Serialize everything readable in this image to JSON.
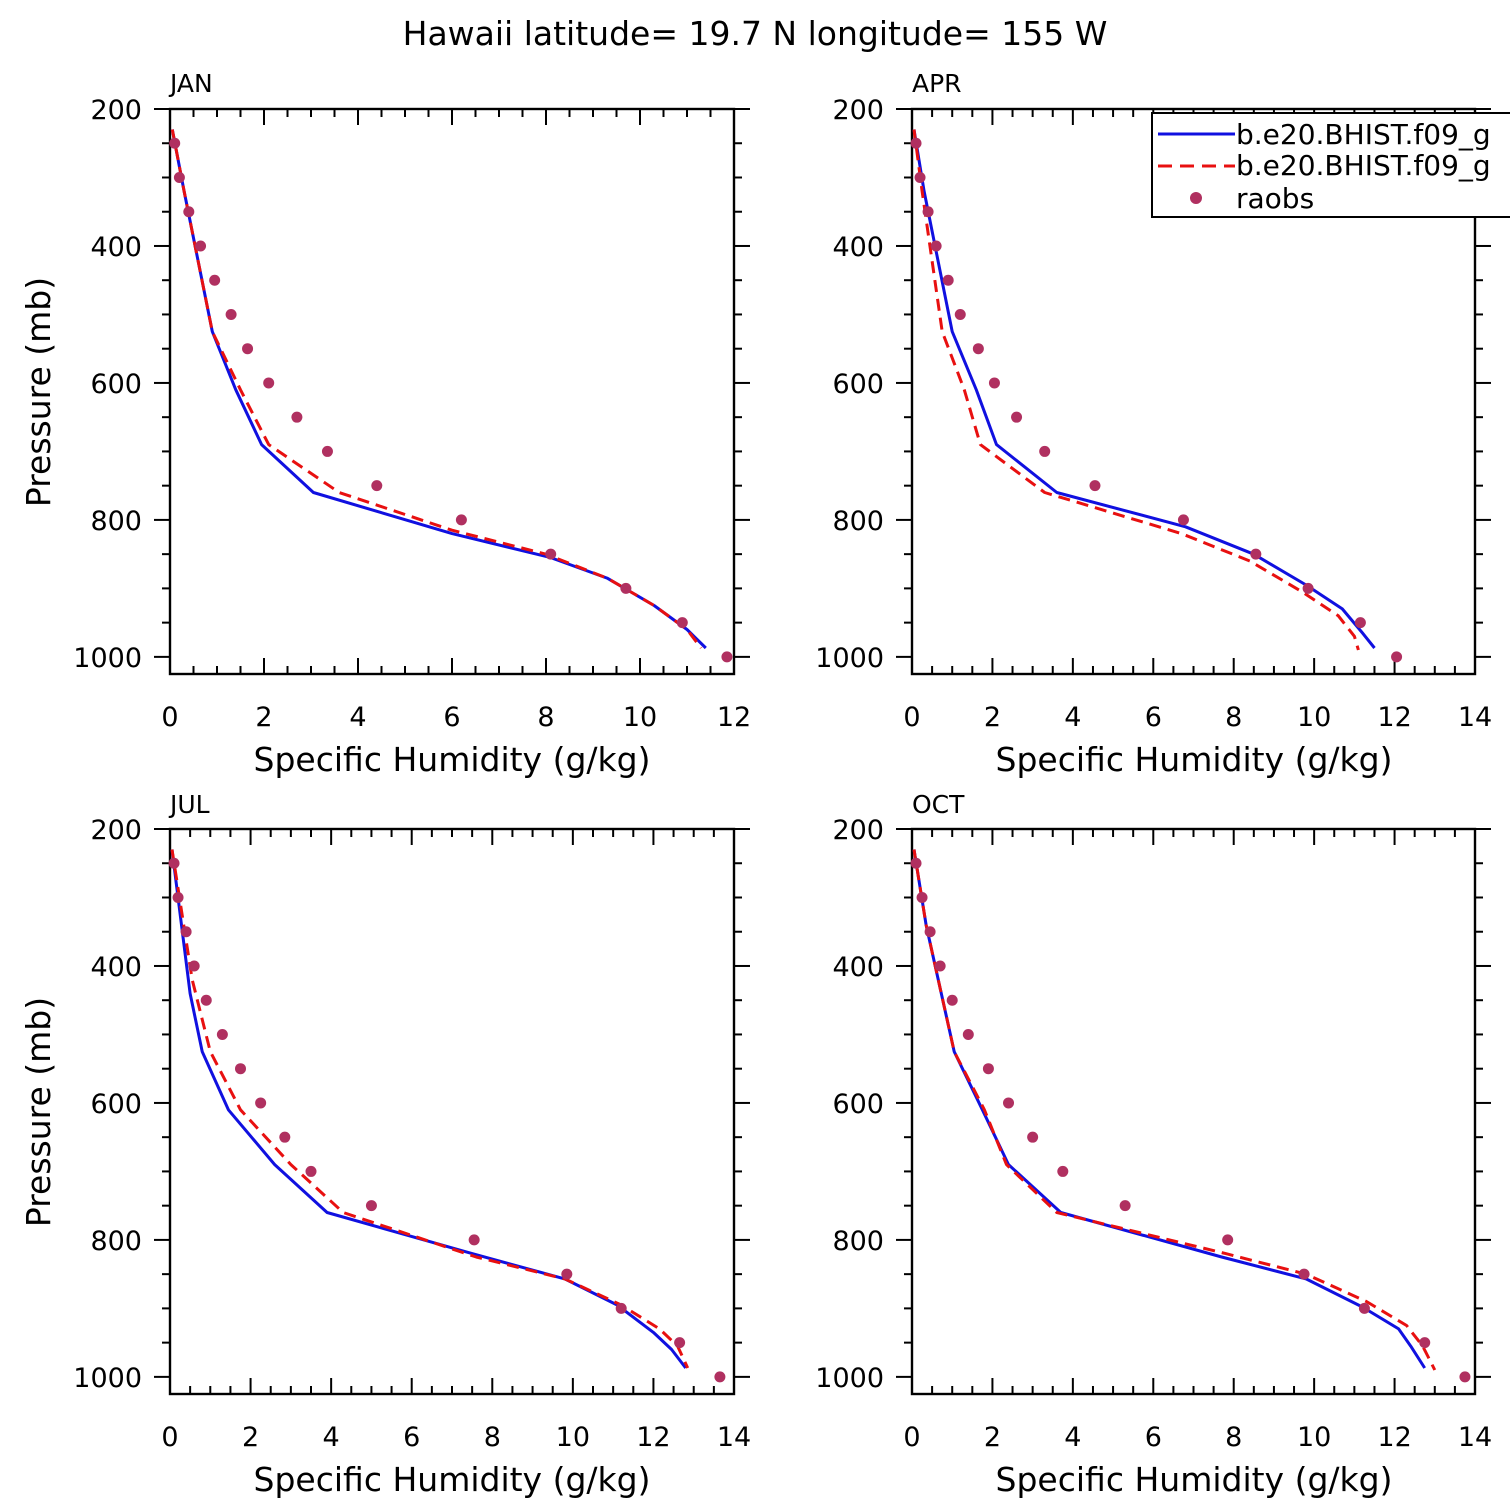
{
  "title": "Hawaii  latitude= 19.7 N longitude= 155 W",
  "colors": {
    "model1": "#1010e0",
    "model2": "#e81010",
    "raobs": "#b03060",
    "axis": "#000000"
  },
  "legend": {
    "placement": "top-right of APR panel",
    "entries": [
      {
        "label": "b.e20.BHIST.f09_g",
        "style": "solid",
        "color": "#1010e0"
      },
      {
        "label": "b.e20.BHIST.f09_g",
        "style": "dashed",
        "color": "#e81010"
      },
      {
        "label": "raobs",
        "style": "dots",
        "color": "#b03060"
      }
    ]
  },
  "chart_data": [
    {
      "type": "line",
      "panel_label": "JAN",
      "xlabel": "Specific Humidity (g/kg)",
      "ylabel": "Pressure (mb)",
      "xlim": [
        0,
        12
      ],
      "xticks": [
        0,
        2,
        4,
        6,
        8,
        10,
        12
      ],
      "ylim": [
        200,
        1025
      ],
      "yticks": [
        200,
        400,
        600,
        800,
        1000
      ],
      "y_inverted": true,
      "series": [
        {
          "style": "solid",
          "color": "#1010e0",
          "points": [
            [
              0.05,
              230
            ],
            [
              0.3,
              320
            ],
            [
              0.9,
              525
            ],
            [
              1.4,
              610
            ],
            [
              1.95,
              690
            ],
            [
              3.05,
              760
            ],
            [
              6.0,
              820
            ],
            [
              8.1,
              855
            ],
            [
              9.3,
              885
            ],
            [
              10.3,
              925
            ],
            [
              11.0,
              960
            ],
            [
              11.4,
              987
            ]
          ]
        },
        {
          "style": "dashed",
          "color": "#e81010",
          "points": [
            [
              0.05,
              230
            ],
            [
              0.3,
              320
            ],
            [
              0.9,
              525
            ],
            [
              1.5,
              610
            ],
            [
              2.1,
              690
            ],
            [
              3.6,
              760
            ],
            [
              6.0,
              815
            ],
            [
              8.0,
              850
            ],
            [
              9.3,
              885
            ],
            [
              10.3,
              925
            ],
            [
              11.0,
              960
            ],
            [
              11.3,
              987
            ]
          ]
        },
        {
          "style": "dots",
          "color": "#b03060",
          "points": [
            [
              0.1,
              250
            ],
            [
              0.2,
              300
            ],
            [
              0.4,
              350
            ],
            [
              0.65,
              400
            ],
            [
              0.95,
              450
            ],
            [
              1.3,
              500
            ],
            [
              1.65,
              550
            ],
            [
              2.1,
              600
            ],
            [
              2.7,
              650
            ],
            [
              3.35,
              700
            ],
            [
              4.4,
              750
            ],
            [
              6.2,
              800
            ],
            [
              8.1,
              850
            ],
            [
              9.7,
              900
            ],
            [
              10.9,
              950
            ],
            [
              11.85,
              1000
            ]
          ]
        }
      ]
    },
    {
      "type": "line",
      "panel_label": "APR",
      "xlabel": "Specific Humidity (g/kg)",
      "ylabel": "",
      "xlim": [
        0,
        14
      ],
      "xticks": [
        0,
        2,
        4,
        6,
        8,
        10,
        12,
        14
      ],
      "ylim": [
        200,
        1025
      ],
      "yticks": [
        200,
        400,
        600,
        800,
        1000
      ],
      "y_inverted": true,
      "series": [
        {
          "style": "solid",
          "color": "#1010e0",
          "points": [
            [
              0.05,
              230
            ],
            [
              0.3,
              320
            ],
            [
              1.0,
              525
            ],
            [
              1.6,
              610
            ],
            [
              2.1,
              690
            ],
            [
              3.6,
              760
            ],
            [
              6.8,
              810
            ],
            [
              8.5,
              850
            ],
            [
              9.8,
              895
            ],
            [
              10.7,
              930
            ],
            [
              11.2,
              965
            ],
            [
              11.5,
              987
            ]
          ]
        },
        {
          "style": "dashed",
          "color": "#e81010",
          "points": [
            [
              0.05,
              230
            ],
            [
              0.25,
              320
            ],
            [
              0.75,
              525
            ],
            [
              1.3,
              610
            ],
            [
              1.7,
              690
            ],
            [
              3.3,
              760
            ],
            [
              6.7,
              820
            ],
            [
              8.4,
              860
            ],
            [
              9.7,
              905
            ],
            [
              10.6,
              940
            ],
            [
              11.0,
              970
            ],
            [
              11.1,
              990
            ]
          ]
        },
        {
          "style": "dots",
          "color": "#b03060",
          "points": [
            [
              0.1,
              250
            ],
            [
              0.2,
              300
            ],
            [
              0.4,
              350
            ],
            [
              0.6,
              400
            ],
            [
              0.9,
              450
            ],
            [
              1.2,
              500
            ],
            [
              1.65,
              550
            ],
            [
              2.05,
              600
            ],
            [
              2.6,
              650
            ],
            [
              3.3,
              700
            ],
            [
              4.55,
              750
            ],
            [
              6.75,
              800
            ],
            [
              8.55,
              850
            ],
            [
              9.85,
              900
            ],
            [
              11.15,
              950
            ],
            [
              12.05,
              1000
            ]
          ]
        }
      ]
    },
    {
      "type": "line",
      "panel_label": "JUL",
      "xlabel": "Specific Humidity (g/kg)",
      "ylabel": "Pressure (mb)",
      "xlim": [
        0,
        14
      ],
      "xticks": [
        0,
        2,
        4,
        6,
        8,
        10,
        12,
        14
      ],
      "ylim": [
        200,
        1025
      ],
      "yticks": [
        200,
        400,
        600,
        800,
        1000
      ],
      "y_inverted": true,
      "series": [
        {
          "style": "solid",
          "color": "#1010e0",
          "points": [
            [
              0.05,
              230
            ],
            [
              0.5,
              440
            ],
            [
              0.8,
              525
            ],
            [
              1.45,
              610
            ],
            [
              2.6,
              690
            ],
            [
              3.9,
              760
            ],
            [
              7.5,
              820
            ],
            [
              9.8,
              857
            ],
            [
              11.1,
              895
            ],
            [
              12.0,
              935
            ],
            [
              12.45,
              960
            ],
            [
              12.8,
              987
            ]
          ]
        },
        {
          "style": "dashed",
          "color": "#e81010",
          "points": [
            [
              0.05,
              230
            ],
            [
              0.55,
              420
            ],
            [
              1.0,
              525
            ],
            [
              1.75,
              610
            ],
            [
              3.0,
              690
            ],
            [
              4.3,
              760
            ],
            [
              7.6,
              825
            ],
            [
              9.8,
              857
            ],
            [
              11.2,
              895
            ],
            [
              12.15,
              930
            ],
            [
              12.6,
              955
            ],
            [
              12.85,
              987
            ]
          ]
        },
        {
          "style": "dots",
          "color": "#b03060",
          "points": [
            [
              0.1,
              250
            ],
            [
              0.2,
              300
            ],
            [
              0.4,
              350
            ],
            [
              0.6,
              400
            ],
            [
              0.9,
              450
            ],
            [
              1.3,
              500
            ],
            [
              1.75,
              550
            ],
            [
              2.25,
              600
            ],
            [
              2.85,
              650
            ],
            [
              3.5,
              700
            ],
            [
              5.0,
              750
            ],
            [
              7.55,
              800
            ],
            [
              9.85,
              850
            ],
            [
              11.2,
              900
            ],
            [
              12.65,
              950
            ],
            [
              13.65,
              1000
            ]
          ]
        }
      ]
    },
    {
      "type": "line",
      "panel_label": "OCT",
      "xlabel": "Specific Humidity (g/kg)",
      "ylabel": "",
      "xlim": [
        0,
        14
      ],
      "xticks": [
        0,
        2,
        4,
        6,
        8,
        10,
        12,
        14
      ],
      "ylim": [
        200,
        1025
      ],
      "yticks": [
        200,
        400,
        600,
        800,
        1000
      ],
      "y_inverted": true,
      "series": [
        {
          "style": "solid",
          "color": "#1010e0",
          "points": [
            [
              0.05,
              230
            ],
            [
              0.35,
              340
            ],
            [
              1.05,
              525
            ],
            [
              1.75,
              610
            ],
            [
              2.4,
              690
            ],
            [
              3.7,
              760
            ],
            [
              7.7,
              825
            ],
            [
              9.8,
              857
            ],
            [
              11.2,
              898
            ],
            [
              12.1,
              930
            ],
            [
              12.4,
              955
            ],
            [
              12.75,
              987
            ]
          ]
        },
        {
          "style": "dashed",
          "color": "#e81010",
          "points": [
            [
              0.05,
              230
            ],
            [
              0.35,
              340
            ],
            [
              1.05,
              525
            ],
            [
              1.8,
              610
            ],
            [
              2.35,
              690
            ],
            [
              3.6,
              760
            ],
            [
              7.8,
              820
            ],
            [
              9.8,
              850
            ],
            [
              11.3,
              890
            ],
            [
              12.3,
              925
            ],
            [
              12.7,
              955
            ],
            [
              13.0,
              990
            ]
          ]
        },
        {
          "style": "dots",
          "color": "#b03060",
          "points": [
            [
              0.1,
              250
            ],
            [
              0.25,
              300
            ],
            [
              0.45,
              350
            ],
            [
              0.7,
              400
            ],
            [
              1.0,
              450
            ],
            [
              1.4,
              500
            ],
            [
              1.9,
              550
            ],
            [
              2.4,
              600
            ],
            [
              3.0,
              650
            ],
            [
              3.75,
              700
            ],
            [
              5.3,
              750
            ],
            [
              7.85,
              800
            ],
            [
              9.75,
              850
            ],
            [
              11.25,
              900
            ],
            [
              12.75,
              950
            ],
            [
              13.75,
              1000
            ]
          ]
        }
      ]
    }
  ]
}
